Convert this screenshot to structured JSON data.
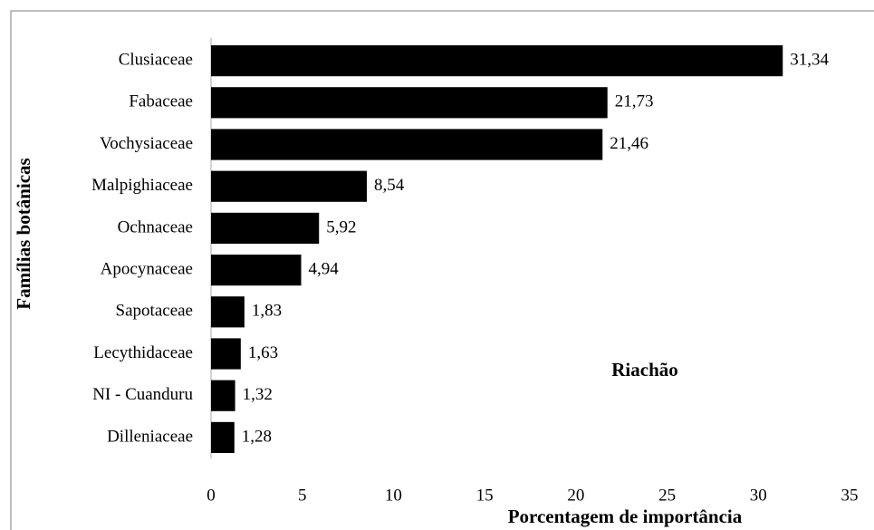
{
  "chart_data": {
    "type": "bar",
    "orientation": "horizontal",
    "x_label": "Porcentagem de importância",
    "y_label": "Famílias botânicas",
    "annotation": "Riachão",
    "categories": [
      "Clusiaceae",
      "Fabaceae",
      "Vochysiaceae",
      "Malpighiaceae",
      "Ochnaceae",
      "Apocynaceae",
      "Sapotaceae",
      "Lecythidaceae",
      "NI - Cuanduru",
      "Dilleniaceae"
    ],
    "values": [
      31.34,
      21.73,
      21.46,
      8.54,
      5.92,
      4.94,
      1.83,
      1.63,
      1.32,
      1.28
    ],
    "value_labels": [
      "31,34",
      "21,73",
      "21,46",
      "8,54",
      "5,92",
      "4,94",
      "1,83",
      "1,63",
      "1,32",
      "1,28"
    ],
    "color": "#000000",
    "xlim": [
      0,
      35
    ],
    "xticks": [
      0,
      5,
      10,
      15,
      20,
      25,
      30,
      35
    ],
    "grid": false
  }
}
